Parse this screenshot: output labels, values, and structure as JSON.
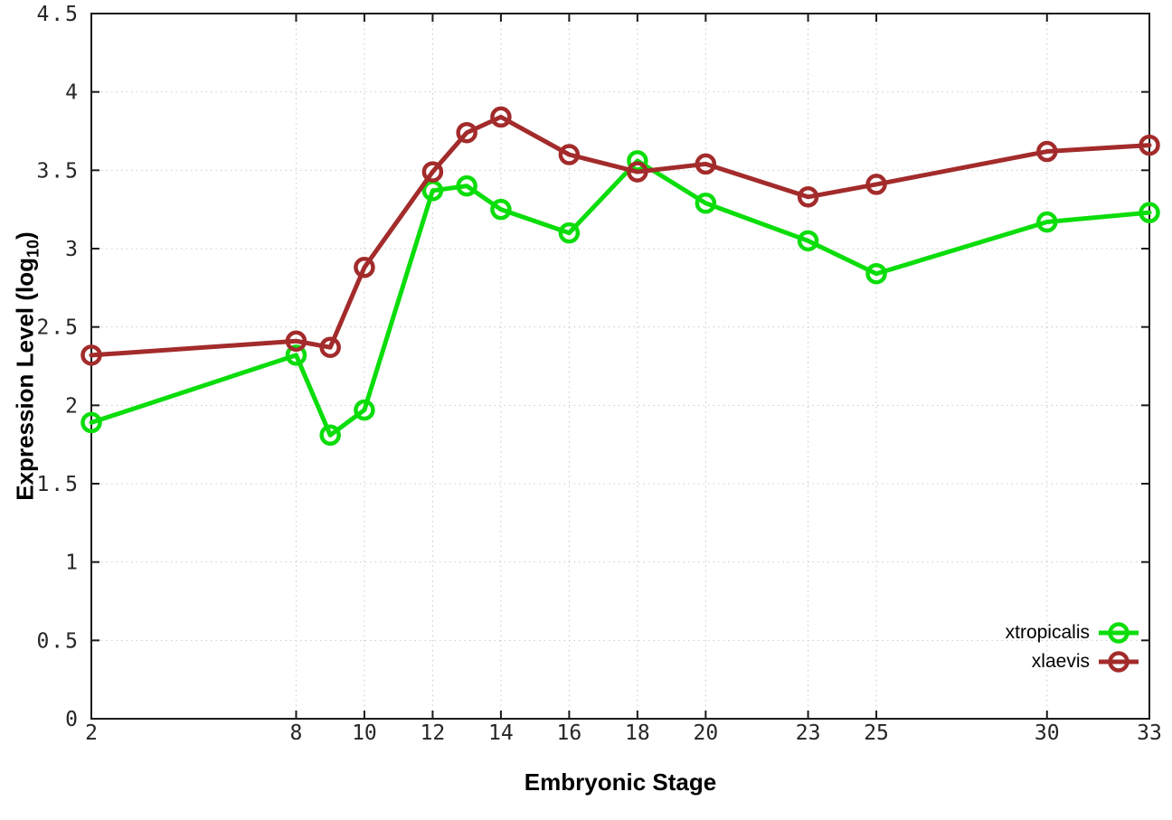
{
  "chart_data": {
    "type": "line",
    "title": "",
    "xlabel": "Embryonic Stage",
    "ylabel_parts": {
      "main": "Expression Level (log",
      "sub": "10",
      "end": ")"
    },
    "x": [
      2,
      8,
      9,
      10,
      12,
      13,
      14,
      16,
      18,
      20,
      23,
      25,
      30,
      33
    ],
    "series": [
      {
        "name": "xtropicalis",
        "color": "#0bdd0b",
        "values": [
          1.89,
          2.32,
          1.81,
          1.97,
          3.37,
          3.4,
          3.25,
          3.1,
          3.56,
          3.29,
          3.05,
          2.84,
          3.17,
          3.23
        ]
      },
      {
        "name": "xlaevis",
        "color": "#a32b2b",
        "values": [
          2.32,
          2.41,
          2.37,
          2.88,
          3.49,
          3.74,
          3.84,
          3.6,
          3.49,
          3.54,
          3.33,
          3.41,
          3.62,
          3.66
        ]
      }
    ],
    "xticks": [
      2,
      8,
      10,
      12,
      14,
      16,
      18,
      20,
      23,
      25,
      30,
      33
    ],
    "xtick_labels": [
      "2",
      "8",
      "10",
      "12",
      "14",
      "16",
      "18",
      "20",
      "23",
      "25",
      "30",
      "33"
    ],
    "yticks": [
      0,
      0.5,
      1,
      1.5,
      2,
      2.5,
      3,
      3.5,
      4,
      4.5
    ],
    "ytick_labels": [
      "0",
      "0.5",
      "1",
      "1.5",
      "2",
      "2.5",
      "3",
      "3.5",
      "4",
      "4.5"
    ],
    "xlim": [
      2,
      33
    ],
    "ylim": [
      0,
      4.5
    ],
    "grid": true,
    "marker": "open-circle",
    "legend_position": "bottom-right-inside",
    "colors": {
      "axis": "#1a1a1a",
      "grid": "#c9c9c9",
      "tick_label": "#262626"
    },
    "legend": {
      "items": [
        {
          "label": "xtropicalis"
        },
        {
          "label": "xlaevis"
        }
      ]
    }
  }
}
